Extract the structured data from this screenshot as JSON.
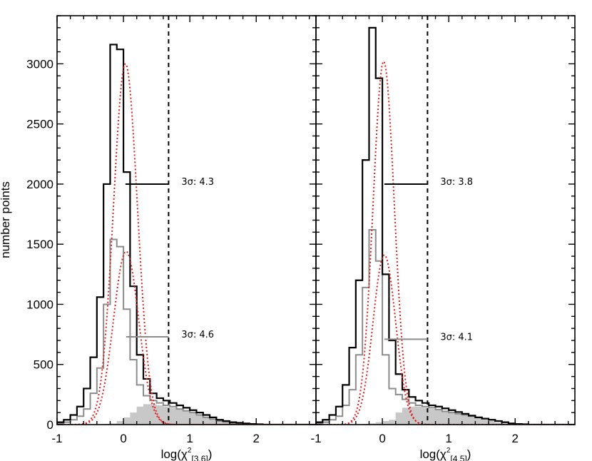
{
  "chart_data": {
    "type": "histogram",
    "ylabel": "number points",
    "ylim": [
      0,
      3400
    ],
    "y_ticks": [
      0,
      500,
      1000,
      1500,
      2000,
      2500,
      3000
    ],
    "colors": {
      "total": "#000000",
      "subset": "#8c8c8c",
      "filled": "#c8c8c8",
      "fit": "#e02020",
      "threshold": "#000000"
    },
    "panels": [
      {
        "xlabel": "log(χ²[3.6])",
        "xlim": [
          -1,
          2.9
        ],
        "x_ticks": [
          -1,
          0,
          1,
          2
        ],
        "bin_start": -1.0,
        "bin_width": 0.1,
        "total_counts": [
          20,
          40,
          80,
          150,
          300,
          560,
          1060,
          2000,
          3160,
          3120,
          2100,
          1150,
          580,
          380,
          260,
          220,
          200,
          180,
          160,
          140,
          120,
          100,
          80,
          60,
          40,
          30,
          20,
          15,
          10,
          5,
          3,
          0,
          0,
          0,
          0,
          0,
          0,
          0,
          0
        ],
        "subset_counts": [
          10,
          20,
          40,
          70,
          130,
          260,
          470,
          1000,
          1540,
          1480,
          960,
          540,
          330,
          240,
          200,
          180,
          160,
          150,
          130,
          115,
          100,
          80,
          60,
          45,
          30,
          20,
          10,
          5,
          3,
          2,
          0,
          0,
          0,
          0,
          0,
          0,
          0,
          0,
          0
        ],
        "filled_counts": [
          0,
          0,
          0,
          0,
          0,
          0,
          0,
          5,
          10,
          30,
          60,
          100,
          150,
          170,
          170,
          160,
          150,
          140,
          130,
          110,
          95,
          80,
          60,
          45,
          30,
          20,
          10,
          5,
          0,
          0,
          0,
          0,
          0,
          0,
          0,
          0,
          0,
          0,
          0
        ],
        "fit_total": {
          "amplitude": 3000,
          "mean": 0.03,
          "sigma": 0.18
        },
        "fit_subset": {
          "amplitude": 1440,
          "mean": 0.04,
          "sigma": 0.19
        },
        "threshold_x": 0.68,
        "bars": [
          {
            "label": "3σ:  4.3",
            "y": 2000,
            "x_from": 0.03,
            "x_to": 0.68,
            "color": "#000000"
          },
          {
            "label": "3σ:  4.6",
            "y": 730,
            "x_from": 0.04,
            "x_to": 0.68,
            "color": "#8c8c8c"
          }
        ]
      },
      {
        "xlabel": "log(χ²[4.5])",
        "xlim": [
          -1,
          2.9
        ],
        "x_ticks": [
          -1,
          0,
          1,
          2
        ],
        "bin_start": -1.0,
        "bin_width": 0.1,
        "total_counts": [
          20,
          40,
          80,
          150,
          330,
          640,
          1200,
          2200,
          3300,
          2880,
          1250,
          700,
          420,
          290,
          230,
          200,
          180,
          160,
          150,
          135,
          120,
          105,
          90,
          75,
          60,
          50,
          40,
          30,
          20,
          10,
          5,
          3,
          0,
          0,
          0,
          0,
          0,
          0,
          0
        ],
        "subset_counts": [
          10,
          20,
          40,
          70,
          160,
          290,
          580,
          1140,
          1620,
          1360,
          580,
          300,
          250,
          210,
          180,
          160,
          150,
          140,
          125,
          110,
          100,
          90,
          80,
          70,
          60,
          50,
          40,
          30,
          20,
          10,
          5,
          2,
          0,
          0,
          0,
          0,
          0,
          0,
          0
        ],
        "filled_counts": [
          0,
          0,
          0,
          0,
          0,
          0,
          0,
          5,
          10,
          20,
          30,
          40,
          100,
          140,
          150,
          150,
          140,
          130,
          120,
          110,
          100,
          90,
          80,
          70,
          55,
          45,
          30,
          20,
          10,
          5,
          0,
          0,
          0,
          0,
          0,
          0,
          0,
          0,
          0
        ],
        "fit_total": {
          "amplitude": 3020,
          "mean": 0.02,
          "sigma": 0.16
        },
        "fit_subset": {
          "amplitude": 1410,
          "mean": 0.03,
          "sigma": 0.17
        },
        "threshold_x": 0.68,
        "bars": [
          {
            "label": "3σ:  3.8",
            "y": 2000,
            "x_from": 0.03,
            "x_to": 0.68,
            "color": "#000000"
          },
          {
            "label": "3σ:  4.1",
            "y": 710,
            "x_from": 0.03,
            "x_to": 0.68,
            "color": "#8c8c8c"
          }
        ]
      }
    ]
  }
}
